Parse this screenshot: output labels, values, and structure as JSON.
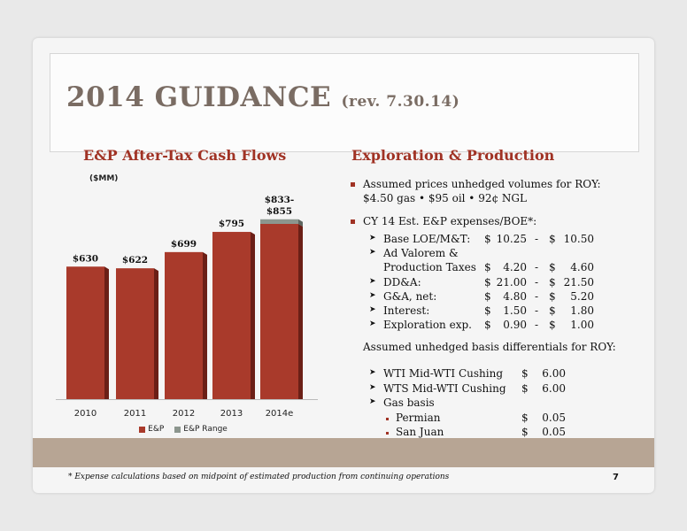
{
  "title": {
    "main": "2014 GUIDANCE",
    "rev": "(rev. 7.30.14)"
  },
  "left_heading": "E&P After-Tax Cash Flows",
  "unit_label": "($MM)",
  "right_heading": "Exploration & Production",
  "colors": {
    "bar": "#a93a2b",
    "bar_dark": "#6b1f16",
    "range": "#8c968e",
    "accent": "#a03224",
    "tan_band": "#b7a594"
  },
  "chart_data": {
    "type": "bar",
    "categories": [
      "2010",
      "2011",
      "2012",
      "2013",
      "2014e"
    ],
    "series": [
      {
        "name": "E&P",
        "values": [
          630,
          622,
          699,
          795,
          833
        ]
      },
      {
        "name": "E&P Range",
        "values": [
          0,
          0,
          0,
          0,
          22
        ]
      }
    ],
    "data_labels": [
      "$630",
      "$622",
      "$699",
      "$795",
      "$833-\n$855"
    ],
    "ylim": [
      0,
      900
    ],
    "legend": "bottom"
  },
  "assumptions": {
    "prices_line1": "Assumed prices unhedged volumes for ROY:",
    "prices_line2": "$4.50 gas • $95 oil • 92¢ NGL",
    "expenses_header": "CY 14 Est. E&P expenses/BOE*:",
    "expenses": [
      {
        "label": "Base LOE/M&T:",
        "low_sym": "$",
        "low": "10.25",
        "dash": "-",
        "high_sym": "$",
        "high": "10.50"
      },
      {
        "label": "Ad Valorem &",
        "low_sym": "",
        "low": "",
        "dash": "",
        "high_sym": "",
        "high": ""
      },
      {
        "label": "Production Taxes",
        "low_sym": "$",
        "low": "4.20",
        "dash": "-",
        "high_sym": "$",
        "high": "4.60"
      },
      {
        "label": "DD&A:",
        "low_sym": "$",
        "low": "21.00",
        "dash": "-",
        "high_sym": "$",
        "high": "21.50"
      },
      {
        "label": "G&A, net:",
        "low_sym": "$",
        "low": "4.80",
        "dash": "-",
        "high_sym": "$",
        "high": "5.20"
      },
      {
        "label": "Interest:",
        "low_sym": "$",
        "low": "1.50",
        "dash": "-",
        "high_sym": "$",
        "high": "1.80"
      },
      {
        "label": "Exploration exp.",
        "low_sym": "$",
        "low": "0.90",
        "dash": "-",
        "high_sym": "$",
        "high": "1.00"
      }
    ],
    "basis_header": "Assumed unhedged basis differentials for ROY:",
    "basis": [
      {
        "label": "WTI Mid-WTI Cushing",
        "sym": "$",
        "value": "6.00"
      },
      {
        "label": "WTS Mid-WTI Cushing",
        "sym": "$",
        "value": "6.00"
      },
      {
        "label": "Gas basis",
        "sym": "",
        "value": ""
      }
    ],
    "gas_basis": [
      {
        "label": "Permian",
        "sym": "$",
        "value": "0.05"
      },
      {
        "label": "San Juan",
        "sym": "$",
        "value": "0.05"
      }
    ]
  },
  "footnote": "* Expense calculations based on midpoint of estimated production from continuing operations",
  "page_number": "7"
}
